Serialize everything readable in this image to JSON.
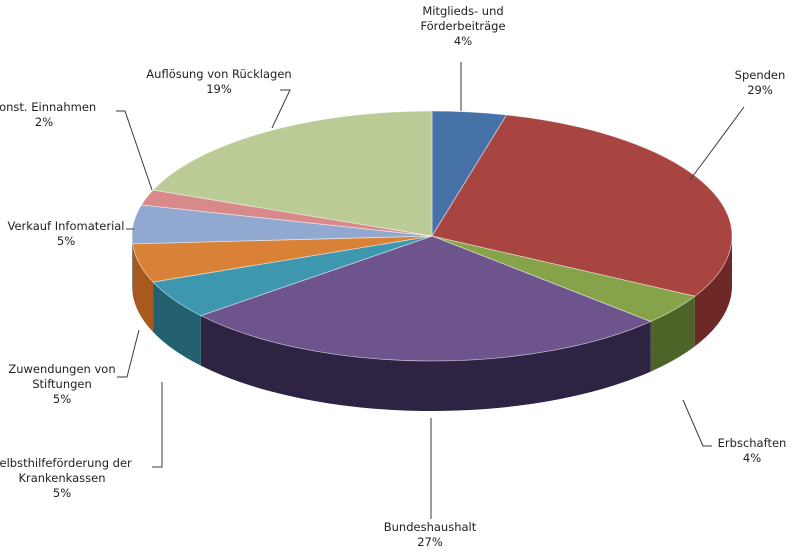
{
  "chart_data": {
    "type": "pie",
    "title": "",
    "style": "3d",
    "legend": "none",
    "slices": [
      {
        "label_lines": [
          "Mitglieds- und",
          "Förderbeiträge"
        ],
        "value": 4,
        "value_label": "4%",
        "color": "#4672A8",
        "side": "#2F4F7A"
      },
      {
        "label_lines": [
          "Spenden"
        ],
        "value": 29,
        "value_label": "29%",
        "color": "#A84541",
        "side": "#6E2826"
      },
      {
        "label_lines": [
          "Erbschaften"
        ],
        "value": 4,
        "value_label": "4%",
        "color": "#86A349",
        "side": "#4E6328"
      },
      {
        "label_lines": [
          "Bundeshaushalt"
        ],
        "value": 27,
        "value_label": "27%",
        "color": "#6E548D",
        "side": "#2E2342"
      },
      {
        "label_lines": [
          "Selbsthilfeförderung der",
          "Krankenkassen"
        ],
        "value": 5,
        "value_label": "5%",
        "color": "#3D97AF",
        "side": "#236070"
      },
      {
        "label_lines": [
          "Zuwendungen  von",
          "Stiftungen"
        ],
        "value": 5,
        "value_label": "5%",
        "color": "#DA8138",
        "side": "#A85A1E"
      },
      {
        "label_lines": [
          "Verkauf Infomaterial"
        ],
        "value": 5,
        "value_label": "5%",
        "color": "#91A8D0",
        "side": "#6D81A8"
      },
      {
        "label_lines": [
          "Sonst. Einnahmen"
        ],
        "value": 2,
        "value_label": "2%",
        "color": "#D88A8A",
        "side": "#A86464"
      },
      {
        "label_lines": [
          "Auflösung von Rücklagen"
        ],
        "value": 19,
        "value_label": "19%",
        "color": "#BACB95",
        "side": "#8E9C6E"
      }
    ]
  }
}
